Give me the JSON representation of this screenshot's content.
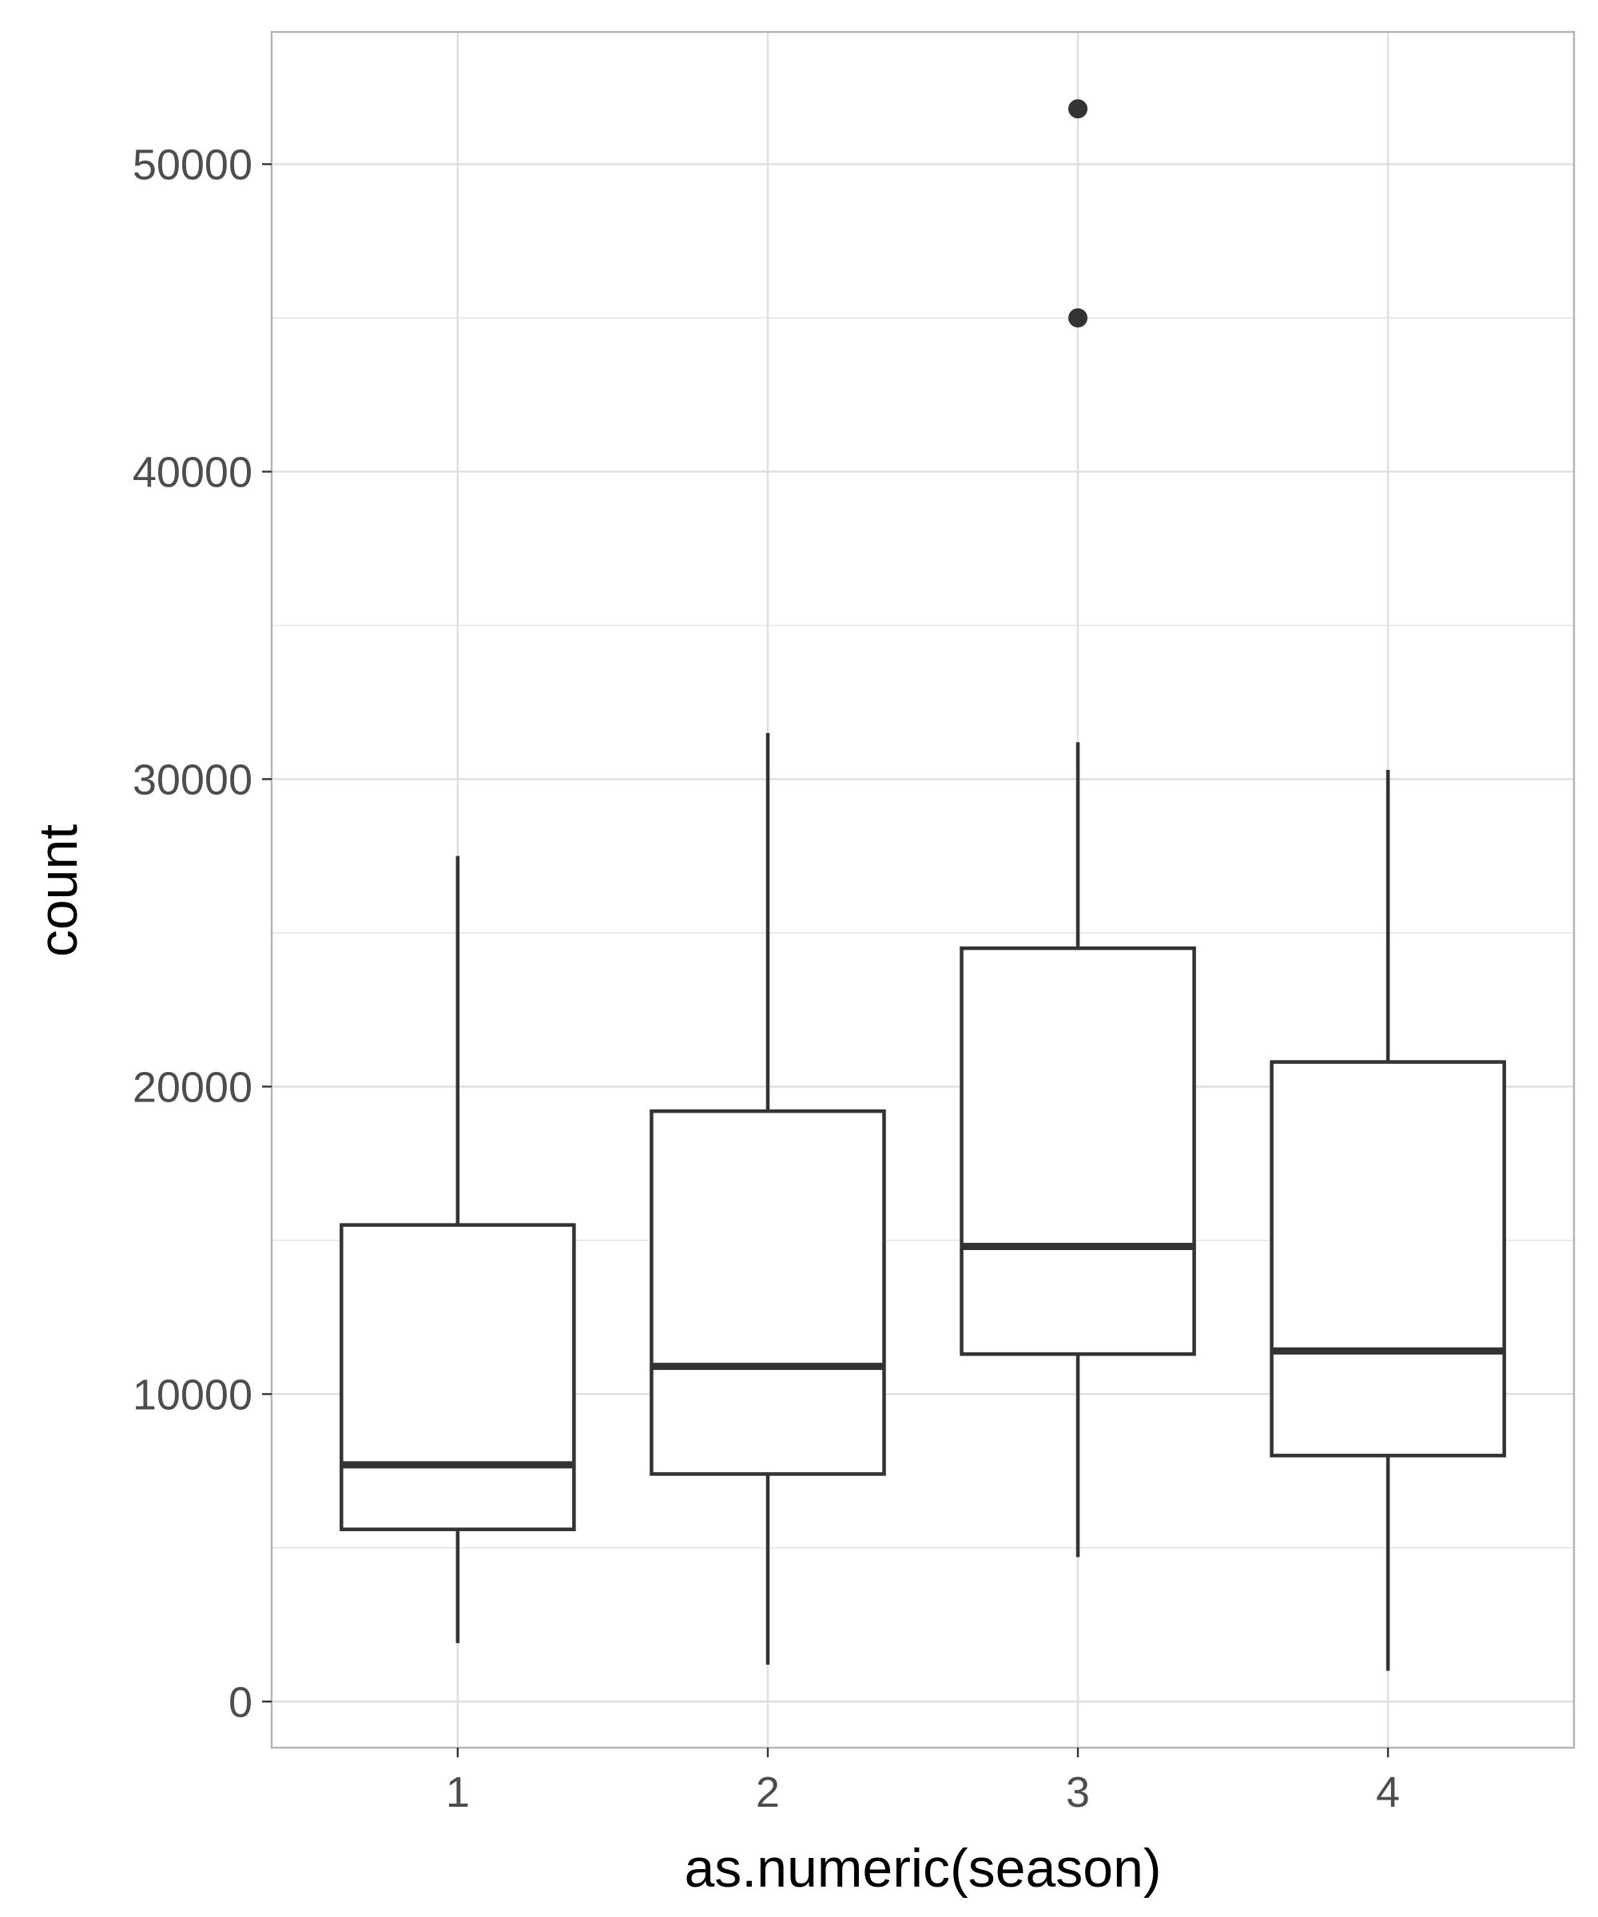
{
  "chart_data": {
    "type": "boxplot",
    "title": "",
    "xlabel": "as.numeric(season)",
    "ylabel": "count",
    "categories": [
      "1",
      "2",
      "3",
      "4"
    ],
    "ylim": [
      -1500,
      54300
    ],
    "y_ticks": [
      0,
      10000,
      20000,
      30000,
      40000,
      50000
    ],
    "y_tick_labels": [
      "0",
      "10000",
      "20000",
      "30000",
      "40000",
      "50000"
    ],
    "grid": true,
    "legend": "none",
    "colors": {
      "box_stroke": "#333333",
      "grid": "#dedede",
      "panel_border": "#b3b3b3",
      "tick_label": "#4d4d4d"
    },
    "boxes": [
      {
        "category": "1",
        "whisker_low": 1900,
        "q1": 5600,
        "median": 7700,
        "q3": 15500,
        "whisker_high": 27500,
        "outliers": []
      },
      {
        "category": "2",
        "whisker_low": 1200,
        "q1": 7400,
        "median": 10900,
        "q3": 19200,
        "whisker_high": 31500,
        "outliers": []
      },
      {
        "category": "3",
        "whisker_low": 4700,
        "q1": 11300,
        "median": 14800,
        "q3": 24500,
        "whisker_high": 31200,
        "outliers": [
          45000,
          51800
        ]
      },
      {
        "category": "4",
        "whisker_low": 1000,
        "q1": 8000,
        "median": 11400,
        "q3": 20800,
        "whisker_high": 30300,
        "outliers": []
      }
    ]
  }
}
